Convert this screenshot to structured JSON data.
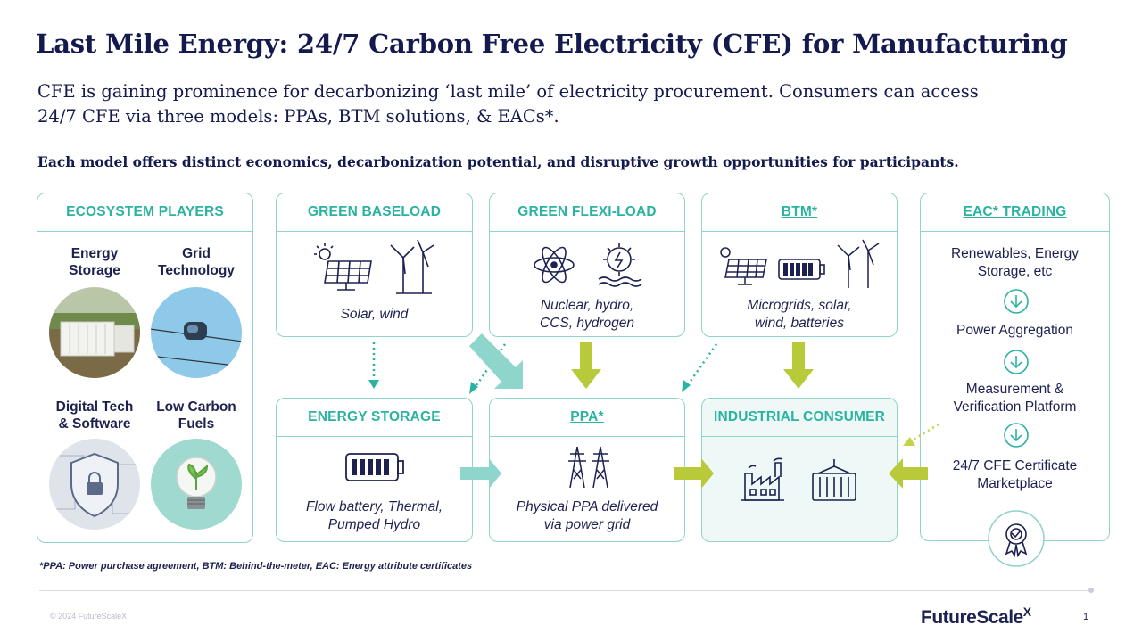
{
  "title": "Last Mile Energy: 24/7 Carbon Free Electricity (CFE) for Manufacturing",
  "subtitle_line1": "CFE is gaining prominence for decarbonizing ‘last mile’ of electricity procurement. Consumers can access",
  "subtitle_line2": "24/7 CFE via three models: PPAs, BTM solutions, & EACs*.",
  "lead": "Each model offers distinct economics, decarbonization potential, and disruptive growth opportunities for participants.",
  "ecosystem": {
    "header": "ECOSYSTEM PLAYERS",
    "players": [
      {
        "line1": "Energy",
        "line2": "Storage"
      },
      {
        "line1": "Grid",
        "line2": "Technology"
      },
      {
        "line1": "Digital Tech",
        "line2": "& Software"
      },
      {
        "line1": "Low Carbon",
        "line2": "Fuels"
      }
    ]
  },
  "green_baseload": {
    "header": "GREEN BASELOAD",
    "caption": "Solar, wind"
  },
  "green_flexi": {
    "header": "GREEN FLEXI-LOAD",
    "caption_line1": "Nuclear, hydro,",
    "caption_line2": "CCS, hydrogen"
  },
  "btm": {
    "header": "BTM*",
    "caption_line1": "Microgrids, solar,",
    "caption_line2": "wind, batteries"
  },
  "energy_storage": {
    "header": "ENERGY STORAGE",
    "caption_line1": "Flow battery, Thermal,",
    "caption_line2": "Pumped Hydro"
  },
  "ppa": {
    "header": "PPA*",
    "caption_line1": "Physical PPA delivered",
    "caption_line2": "via power grid"
  },
  "industrial": {
    "header": "INDUSTRIAL CONSUMER"
  },
  "eac": {
    "header": "EAC* TRADING",
    "steps": [
      {
        "line1": "Renewables, Energy",
        "line2": "Storage, etc"
      },
      {
        "line1": "Power Aggregation",
        "line2": ""
      },
      {
        "line1": "Measurement &",
        "line2": "Verification Platform"
      },
      {
        "line1": "24/7 CFE Certificate",
        "line2": "Marketplace"
      }
    ]
  },
  "footnote": "*PPA: Power purchase agreement, BTM: Behind-the-meter, EAC: Energy attribute certificates",
  "copyright": "© 2024 FutureScaleX",
  "logo": "FutureScale",
  "logo_x": "X",
  "page_number": "1",
  "colors": {
    "navy": "#1c2150",
    "teal": "#2ab3a0",
    "border": "#8fd3c9",
    "green": "#b8c93a",
    "light_teal": "#8ed5cb"
  }
}
